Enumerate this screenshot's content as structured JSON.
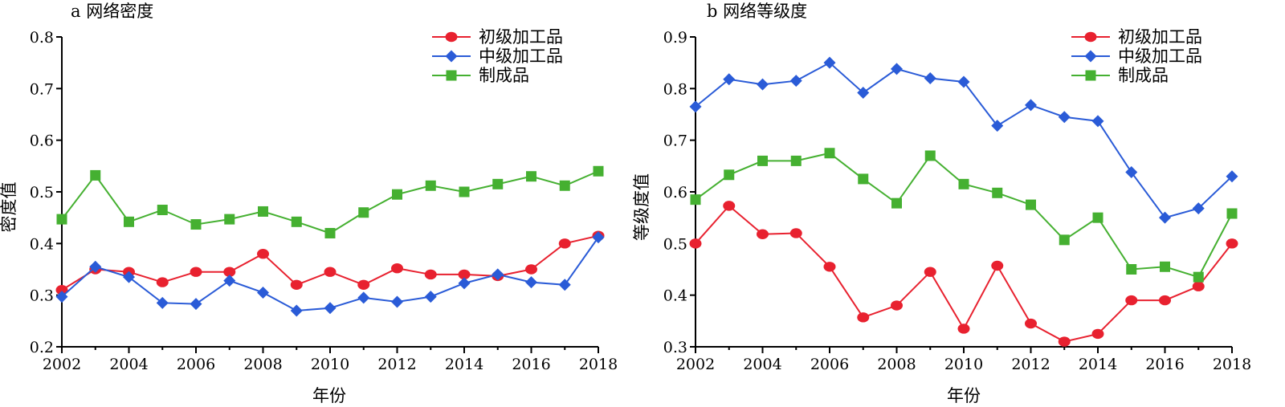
{
  "chart_data": [
    {
      "type": "line",
      "title": "a 网络密度",
      "xlabel": "年份",
      "ylabel": "密度值",
      "xlim": [
        2002,
        2018
      ],
      "ylim": [
        0.2,
        0.8
      ],
      "xticks": [
        "2002",
        "2004",
        "2006",
        "2008",
        "2010",
        "2012",
        "2014",
        "2016",
        "2018"
      ],
      "yticks": [
        "0.2",
        "0.3",
        "0.4",
        "0.5",
        "0.6",
        "0.7",
        "0.8"
      ],
      "legend_position": "top-right",
      "x": [
        2002,
        2003,
        2004,
        2005,
        2006,
        2007,
        2008,
        2009,
        2010,
        2011,
        2012,
        2013,
        2014,
        2015,
        2016,
        2017,
        2018
      ],
      "series": [
        {
          "name": "初级加工品",
          "color": "#e8212f",
          "marker": "circle",
          "values": [
            0.31,
            0.35,
            0.345,
            0.325,
            0.345,
            0.345,
            0.38,
            0.32,
            0.345,
            0.32,
            0.352,
            0.34,
            0.34,
            0.337,
            0.35,
            0.4,
            0.415
          ]
        },
        {
          "name": "中级加工品",
          "color": "#2a5bd7",
          "marker": "diamond",
          "values": [
            0.297,
            0.355,
            0.335,
            0.285,
            0.283,
            0.328,
            0.305,
            0.27,
            0.275,
            0.295,
            0.287,
            0.297,
            0.323,
            0.34,
            0.325,
            0.32,
            0.412
          ]
        },
        {
          "name": "制成品",
          "color": "#45b031",
          "marker": "square",
          "values": [
            0.447,
            0.532,
            0.442,
            0.465,
            0.437,
            0.447,
            0.462,
            0.442,
            0.42,
            0.46,
            0.495,
            0.512,
            0.5,
            0.515,
            0.53,
            0.512,
            0.54
          ]
        }
      ]
    },
    {
      "type": "line",
      "title": "b 网络等级度",
      "xlabel": "年份",
      "ylabel": "等级度值",
      "xlim": [
        2002,
        2018
      ],
      "ylim": [
        0.3,
        0.9
      ],
      "xticks": [
        "2002",
        "2004",
        "2006",
        "2008",
        "2010",
        "2012",
        "2014",
        "2016",
        "2018"
      ],
      "yticks": [
        "0.3",
        "0.4",
        "0.5",
        "0.6",
        "0.7",
        "0.8",
        "0.9"
      ],
      "legend_position": "top-right",
      "x": [
        2002,
        2003,
        2004,
        2005,
        2006,
        2007,
        2008,
        2009,
        2010,
        2011,
        2012,
        2013,
        2014,
        2015,
        2016,
        2017,
        2018
      ],
      "series": [
        {
          "name": "初级加工品",
          "color": "#e8212f",
          "marker": "circle",
          "values": [
            0.5,
            0.573,
            0.518,
            0.52,
            0.455,
            0.357,
            0.38,
            0.445,
            0.335,
            0.457,
            0.345,
            0.31,
            0.325,
            0.39,
            0.39,
            0.417,
            0.5
          ]
        },
        {
          "name": "中级加工品",
          "color": "#2a5bd7",
          "marker": "diamond",
          "values": [
            0.765,
            0.818,
            0.808,
            0.815,
            0.85,
            0.792,
            0.838,
            0.82,
            0.813,
            0.728,
            0.768,
            0.745,
            0.737,
            0.638,
            0.55,
            0.568,
            0.63
          ]
        },
        {
          "name": "制成品",
          "color": "#45b031",
          "marker": "square",
          "values": [
            0.585,
            0.633,
            0.66,
            0.66,
            0.675,
            0.625,
            0.578,
            0.67,
            0.615,
            0.598,
            0.575,
            0.507,
            0.55,
            0.45,
            0.455,
            0.435,
            0.558
          ]
        }
      ]
    }
  ]
}
